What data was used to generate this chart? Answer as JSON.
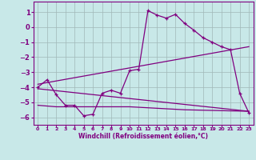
{
  "xlabel": "Windchill (Refroidissement éolien,°C)",
  "bg_color": "#c8e8e8",
  "line_color": "#800080",
  "grid_color": "#a0b8b8",
  "xlim": [
    -0.5,
    23.5
  ],
  "ylim": [
    -6.5,
    1.7
  ],
  "yticks": [
    1,
    0,
    -1,
    -2,
    -3,
    -4,
    -5,
    -6
  ],
  "xticks": [
    0,
    1,
    2,
    3,
    4,
    5,
    6,
    7,
    8,
    9,
    10,
    11,
    12,
    13,
    14,
    15,
    16,
    17,
    18,
    19,
    20,
    21,
    22,
    23
  ],
  "series1_x": [
    0,
    1,
    2,
    3,
    4,
    5,
    6,
    7,
    8,
    9,
    10,
    11,
    12,
    13,
    14,
    15,
    16,
    17,
    18,
    19,
    20,
    21,
    22,
    23
  ],
  "series1_y": [
    -4.0,
    -3.5,
    -4.5,
    -5.2,
    -5.2,
    -5.9,
    -5.8,
    -4.4,
    -4.2,
    -4.4,
    -2.9,
    -2.8,
    1.1,
    0.8,
    0.6,
    0.85,
    0.25,
    -0.2,
    -0.7,
    -1.0,
    -1.3,
    -1.5,
    -4.4,
    -5.7
  ],
  "series2_x": [
    0,
    23
  ],
  "series2_y": [
    -3.8,
    -1.3
  ],
  "series3_x": [
    0,
    23
  ],
  "series3_y": [
    -4.1,
    -5.6
  ],
  "series4_x": [
    0,
    2,
    10,
    16,
    23
  ],
  "series4_y": [
    -5.2,
    -5.3,
    -5.3,
    -5.5,
    -5.6
  ]
}
